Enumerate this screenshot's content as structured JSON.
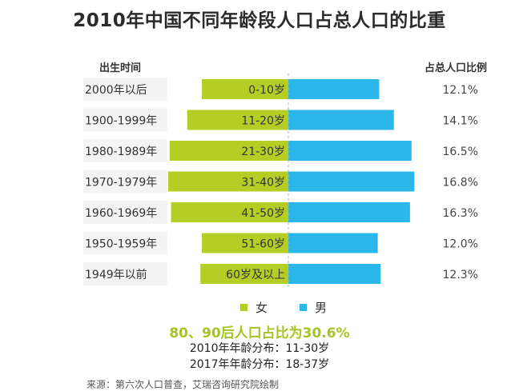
{
  "title": "2010年中国不同年龄段人口占总人口的比重",
  "headers": {
    "left": "出生时间",
    "right": "占总人口比例"
  },
  "colors": {
    "female": "#b5ce26",
    "male": "#2cb7ea",
    "center_line": "#b0b0b0",
    "highlight": "#a5c422"
  },
  "chart_data": {
    "type": "bar",
    "orientation": "horizontal-diverging",
    "categories": [
      "2000年以后",
      "1900-1999年",
      "1980-1989年",
      "1970-1979年",
      "1960-1969年",
      "1950-1959年",
      "1949年以前"
    ],
    "age_labels": [
      "0-10岁",
      "11-20岁",
      "21-30岁",
      "31-40岁",
      "41-50岁",
      "51-60岁",
      "60岁及以上"
    ],
    "percent_labels": [
      "12.1%",
      "14.1%",
      "16.5%",
      "16.8%",
      "16.3%",
      "12.0%",
      "12.3%"
    ],
    "series": [
      {
        "name": "女",
        "values": [
          5.9,
          6.9,
          8.1,
          8.2,
          8.0,
          5.9,
          6.0
        ]
      },
      {
        "name": "男",
        "values": [
          6.2,
          7.2,
          8.4,
          8.6,
          8.3,
          6.1,
          6.3
        ]
      }
    ],
    "total_values": [
      12.1,
      14.1,
      16.5,
      16.8,
      16.3,
      12.0,
      12.3
    ]
  },
  "legend": {
    "female": "女",
    "male": "男"
  },
  "highlight": "80、90后人口占比为30.6%",
  "notes": [
    "2010年年龄分布：11-30岁",
    "2017年年龄分布：18-37岁"
  ],
  "source": "来源：第六次人口普查，艾瑞咨询研究院绘制"
}
